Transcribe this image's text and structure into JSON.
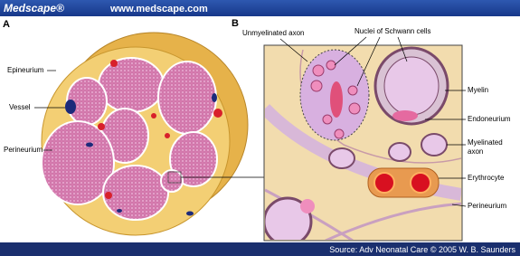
{
  "header": {
    "logo": "Medscape®",
    "url": "www.medscape.com"
  },
  "panels": [
    {
      "letter": "A",
      "labels": [
        "Epineurium",
        "Vessel",
        "Perineurium"
      ]
    },
    {
      "letter": "B",
      "labels": [
        "Unmyelinated axon",
        "Nuclei of Schwann cells",
        "Myelin",
        "Endoneurium",
        [
          "Myelinated",
          "axon"
        ],
        "Erythrocyte",
        "Perineurium"
      ]
    }
  ],
  "footer": {
    "source": "Source: Adv Neonatal Care © 2005 W. B. Saunders"
  }
}
